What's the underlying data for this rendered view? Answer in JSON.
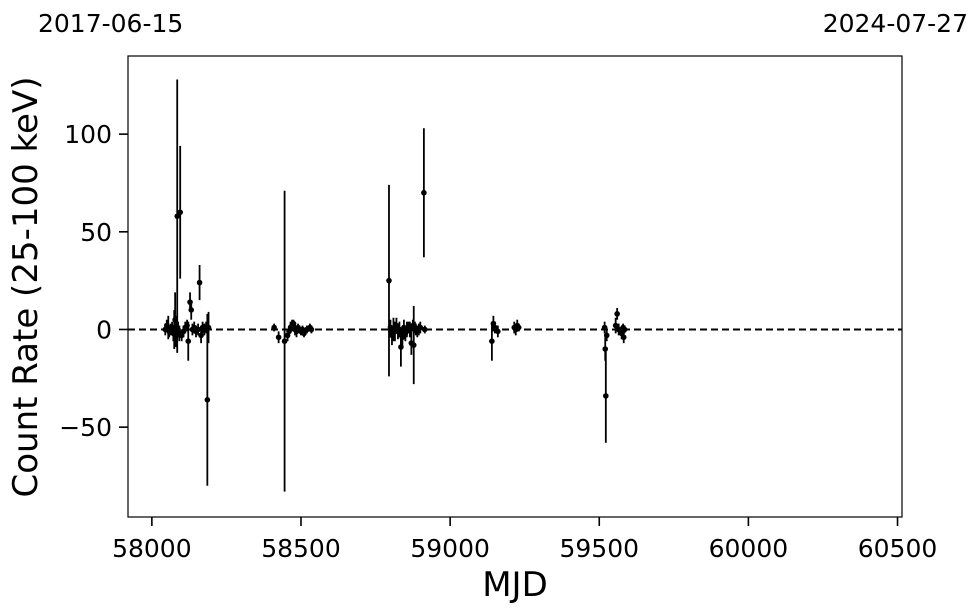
{
  "chart_data": {
    "type": "scatter",
    "title": "",
    "xlabel": "MJD",
    "ylabel": "Count Rate (25-100 keV)",
    "xlim": [
      57920,
      60515
    ],
    "ylim": [
      -96,
      140
    ],
    "xticks": [
      58000,
      58500,
      59000,
      59500,
      60000,
      60500
    ],
    "xtick_labels": [
      "58000",
      "58500",
      "59000",
      "59500",
      "60000",
      "60500"
    ],
    "yticks": [
      -50,
      0,
      50,
      100
    ],
    "ytick_labels": [
      "−50",
      "0",
      "50",
      "100"
    ],
    "top_date_labels": {
      "left": "2017-06-15",
      "right": "2024-07-27"
    },
    "reference_line": {
      "y": 0,
      "style": "dashed"
    },
    "grid": false,
    "legend": "none",
    "marker_color": "#000000",
    "points": [
      {
        "x": 58045,
        "y": 0,
        "err": 3
      },
      {
        "x": 58050,
        "y": 2,
        "err": 3
      },
      {
        "x": 58055,
        "y": 1,
        "err": 6
      },
      {
        "x": 58058,
        "y": -1,
        "err": 3
      },
      {
        "x": 58063,
        "y": 0,
        "err": 3
      },
      {
        "x": 58068,
        "y": 1,
        "err": 3
      },
      {
        "x": 58072,
        "y": -2,
        "err": 4
      },
      {
        "x": 58075,
        "y": 0,
        "err": 10
      },
      {
        "x": 58078,
        "y": 5,
        "err": 14
      },
      {
        "x": 58080,
        "y": -1,
        "err": 8
      },
      {
        "x": 58085,
        "y": 58,
        "err": 70
      },
      {
        "x": 58088,
        "y": 0,
        "err": 4
      },
      {
        "x": 58092,
        "y": -2,
        "err": 4
      },
      {
        "x": 58095,
        "y": 60,
        "err": 34
      },
      {
        "x": 58100,
        "y": -3,
        "err": 3
      },
      {
        "x": 58106,
        "y": -1,
        "err": 3
      },
      {
        "x": 58112,
        "y": 1,
        "err": 3
      },
      {
        "x": 58118,
        "y": 2,
        "err": 3
      },
      {
        "x": 58122,
        "y": -6,
        "err": 10
      },
      {
        "x": 58128,
        "y": 14,
        "err": 5
      },
      {
        "x": 58132,
        "y": 10,
        "err": 5
      },
      {
        "x": 58136,
        "y": 0,
        "err": 3
      },
      {
        "x": 58142,
        "y": 1,
        "err": 3
      },
      {
        "x": 58148,
        "y": -1,
        "err": 3
      },
      {
        "x": 58155,
        "y": 0,
        "err": 3
      },
      {
        "x": 58160,
        "y": 24,
        "err": 9
      },
      {
        "x": 58165,
        "y": -3,
        "err": 4
      },
      {
        "x": 58170,
        "y": 1,
        "err": 3
      },
      {
        "x": 58176,
        "y": 0,
        "err": 3
      },
      {
        "x": 58182,
        "y": 1,
        "err": 3
      },
      {
        "x": 58186,
        "y": -36,
        "err": 44
      },
      {
        "x": 58190,
        "y": 1,
        "err": 8
      },
      {
        "x": 58410,
        "y": 1,
        "err": 2
      },
      {
        "x": 58425,
        "y": -4,
        "err": 3
      },
      {
        "x": 58445,
        "y": -6,
        "err": 77
      },
      {
        "x": 58455,
        "y": -3,
        "err": 3
      },
      {
        "x": 58460,
        "y": -1,
        "err": 3
      },
      {
        "x": 58465,
        "y": 1,
        "err": 3
      },
      {
        "x": 58470,
        "y": 2,
        "err": 3
      },
      {
        "x": 58475,
        "y": 3,
        "err": 2
      },
      {
        "x": 58480,
        "y": 0,
        "err": 3
      },
      {
        "x": 58485,
        "y": -1,
        "err": 3
      },
      {
        "x": 58490,
        "y": 1,
        "err": 2
      },
      {
        "x": 58495,
        "y": 0,
        "err": 2
      },
      {
        "x": 58500,
        "y": -1,
        "err": 2
      },
      {
        "x": 58505,
        "y": 0,
        "err": 2
      },
      {
        "x": 58510,
        "y": -2,
        "err": 2
      },
      {
        "x": 58520,
        "y": 0,
        "err": 2
      },
      {
        "x": 58530,
        "y": 1,
        "err": 2
      },
      {
        "x": 58535,
        "y": 0,
        "err": 2
      },
      {
        "x": 58795,
        "y": 25,
        "err": 49
      },
      {
        "x": 58800,
        "y": 1,
        "err": 4
      },
      {
        "x": 58805,
        "y": -3,
        "err": 5
      },
      {
        "x": 58810,
        "y": 0,
        "err": 6
      },
      {
        "x": 58815,
        "y": -1,
        "err": 5
      },
      {
        "x": 58820,
        "y": 2,
        "err": 4
      },
      {
        "x": 58825,
        "y": -1,
        "err": 4
      },
      {
        "x": 58830,
        "y": 0,
        "err": 4
      },
      {
        "x": 58835,
        "y": -9,
        "err": 10
      },
      {
        "x": 58840,
        "y": -4,
        "err": 5
      },
      {
        "x": 58845,
        "y": 1,
        "err": 4
      },
      {
        "x": 58850,
        "y": -2,
        "err": 4
      },
      {
        "x": 58855,
        "y": 0,
        "err": 4
      },
      {
        "x": 58860,
        "y": 1,
        "err": 3
      },
      {
        "x": 58865,
        "y": 0,
        "err": 4
      },
      {
        "x": 58870,
        "y": -7,
        "err": 6
      },
      {
        "x": 58875,
        "y": 2,
        "err": 3
      },
      {
        "x": 58878,
        "y": -8,
        "err": 20
      },
      {
        "x": 58882,
        "y": 1,
        "err": 3
      },
      {
        "x": 58885,
        "y": 0,
        "err": 3
      },
      {
        "x": 58890,
        "y": -1,
        "err": 3
      },
      {
        "x": 58895,
        "y": 0,
        "err": 3
      },
      {
        "x": 58900,
        "y": 1,
        "err": 3
      },
      {
        "x": 58912,
        "y": 70,
        "err": 33
      },
      {
        "x": 58915,
        "y": 0,
        "err": 2
      },
      {
        "x": 59140,
        "y": -6,
        "err": 10
      },
      {
        "x": 59145,
        "y": 3,
        "err": 4
      },
      {
        "x": 59150,
        "y": 1,
        "err": 3
      },
      {
        "x": 59160,
        "y": -1,
        "err": 3
      },
      {
        "x": 59215,
        "y": 1,
        "err": 3
      },
      {
        "x": 59220,
        "y": 0,
        "err": 3
      },
      {
        "x": 59225,
        "y": 2,
        "err": 3
      },
      {
        "x": 59230,
        "y": 1,
        "err": 2
      },
      {
        "x": 59518,
        "y": 1,
        "err": 3
      },
      {
        "x": 59520,
        "y": -10,
        "err": 6
      },
      {
        "x": 59522,
        "y": -34,
        "err": 24
      },
      {
        "x": 59525,
        "y": -3,
        "err": 3
      },
      {
        "x": 59555,
        "y": 2,
        "err": 4
      },
      {
        "x": 59560,
        "y": 8,
        "err": 3
      },
      {
        "x": 59565,
        "y": 0,
        "err": 3
      },
      {
        "x": 59575,
        "y": -2,
        "err": 3
      },
      {
        "x": 59580,
        "y": 1,
        "err": 2
      },
      {
        "x": 59582,
        "y": -4,
        "err": 3
      },
      {
        "x": 59585,
        "y": 0,
        "err": 2
      }
    ]
  }
}
